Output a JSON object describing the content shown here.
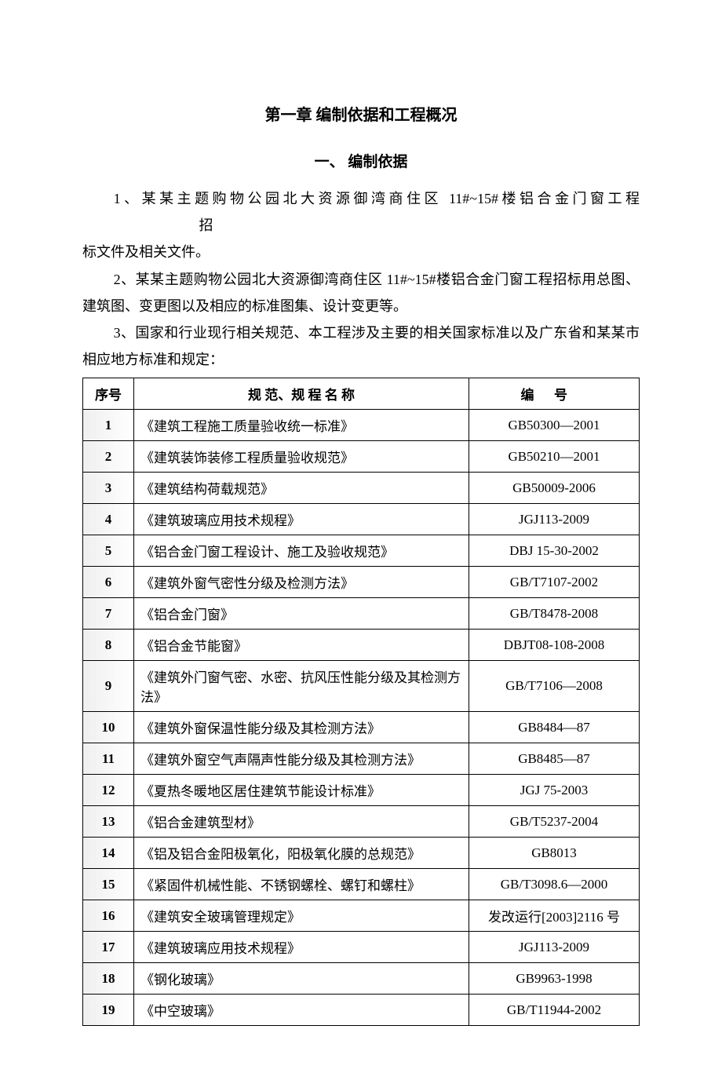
{
  "chapter_title": "第一章   编制依据和工程概况",
  "section_title": "一、 编制依据",
  "paragraphs": {
    "p1_a": "1、某某主题购物公园北大资源御湾商住区 11#~15#楼铝合金门窗工程",
    "p1_b": "招",
    "p1_c": "标文件及相关文件。",
    "p2": "2、某某主题购物公园北大资源御湾商住区 11#~15#楼铝合金门窗工程招标用总图、建筑图、变更图以及相应的标准图集、设计变更等。",
    "p3": "3、国家和行业现行相关规范、本工程涉及主要的相关国家标准以及广东省和某某市相应地方标准和规定："
  },
  "table": {
    "headers": {
      "seq": "序号",
      "name": "规 范、规 程 名 称",
      "code": "编号"
    },
    "rows": [
      {
        "seq": "1",
        "name": "《建筑工程施工质量验收统一标准》",
        "code": "GB50300—2001"
      },
      {
        "seq": "2",
        "name": "《建筑装饰装修工程质量验收规范》",
        "code": "GB50210—2001"
      },
      {
        "seq": "3",
        "name": "《建筑结构荷载规范》",
        "code": "GB50009-2006"
      },
      {
        "seq": "4",
        "name": "《建筑玻璃应用技术规程》",
        "code": "JGJ113-2009"
      },
      {
        "seq": "5",
        "name": "《铝合金门窗工程设计、施工及验收规范》",
        "code": "DBJ 15-30-2002"
      },
      {
        "seq": "6",
        "name": "《建筑外窗气密性分级及检测方法》",
        "code": "GB/T7107-2002"
      },
      {
        "seq": "7",
        "name": "《铝合金门窗》",
        "code": "GB/T8478-2008"
      },
      {
        "seq": "8",
        "name": "《铝合金节能窗》",
        "code": "DBJT08-108-2008"
      },
      {
        "seq": "9",
        "name": "《建筑外门窗气密、水密、抗风压性能分级及其检测方法》",
        "code": "GB/T7106—2008"
      },
      {
        "seq": "10",
        "name": "《建筑外窗保温性能分级及其检测方法》",
        "code": "GB8484—87"
      },
      {
        "seq": "11",
        "name": "《建筑外窗空气声隔声性能分级及其检测方法》",
        "code": "GB8485—87"
      },
      {
        "seq": "12",
        "name": "《夏热冬暖地区居住建筑节能设计标准》",
        "code": "JGJ 75-2003"
      },
      {
        "seq": "13",
        "name": "《铝合金建筑型材》",
        "code": "GB/T5237-2004"
      },
      {
        "seq": "14",
        "name": "《铝及铝合金阳极氧化，阳极氧化膜的总规范》",
        "code": "GB8013"
      },
      {
        "seq": "15",
        "name": "《紧固件机械性能、不锈钢螺栓、螺钉和螺柱》",
        "code": "GB/T3098.6—2000"
      },
      {
        "seq": "16",
        "name": "《建筑安全玻璃管理规定》",
        "code": "发改运行[2003]2116 号"
      },
      {
        "seq": "17",
        "name": "《建筑玻璃应用技术规程》",
        "code": "JGJ113-2009"
      },
      {
        "seq": "18",
        "name": "《钢化玻璃》",
        "code": "GB9963-1998"
      },
      {
        "seq": "19",
        "name": "《中空玻璃》",
        "code": "GB/T11944-2002"
      }
    ]
  }
}
